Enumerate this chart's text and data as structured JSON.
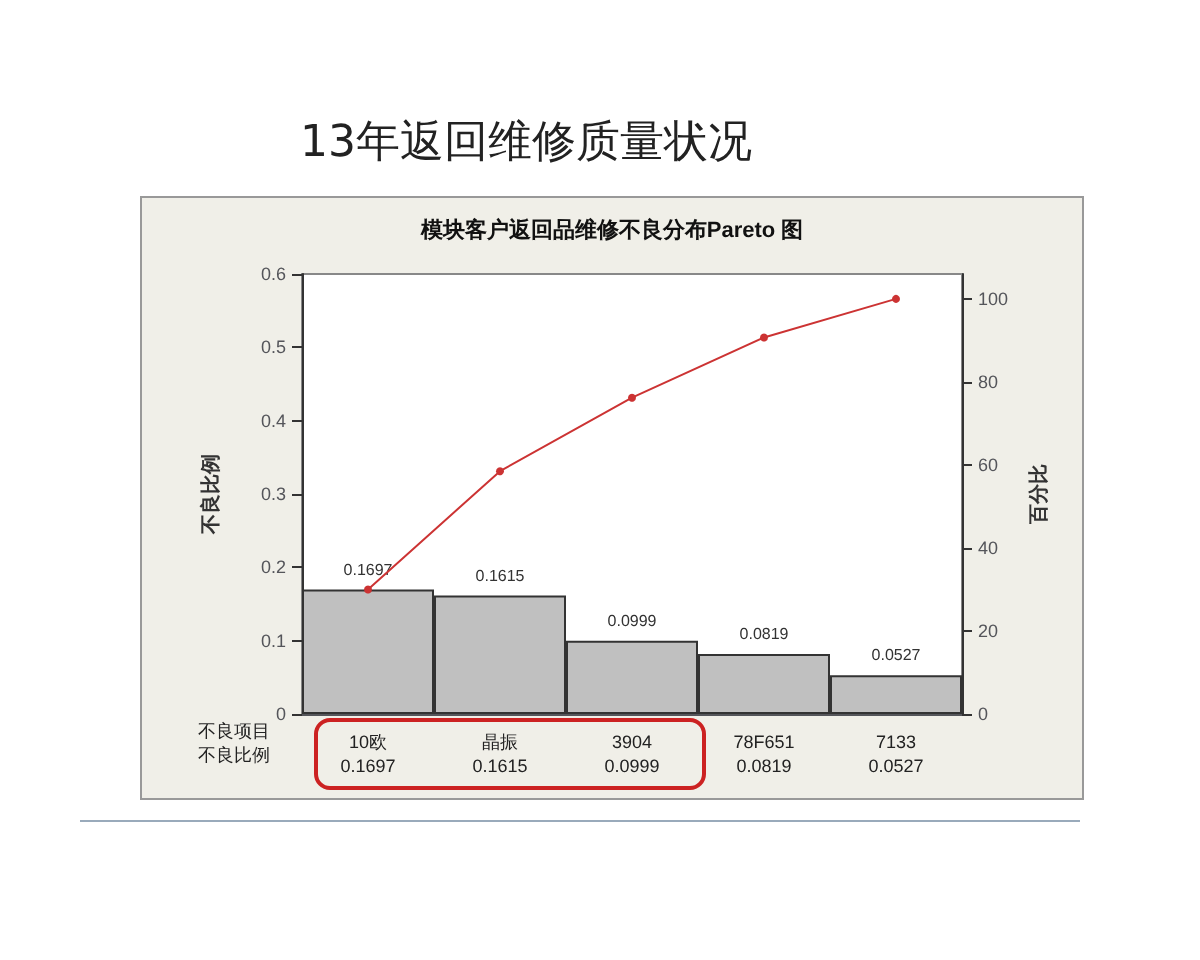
{
  "chart_data": {
    "type": "bar",
    "title": "13年返回维修质量状况",
    "subtitle": "模块客户返回品维修不良分布Pareto 图",
    "ylabel": "不良比例",
    "y2label": "百分比",
    "categories": [
      "10欧",
      "晶振",
      "3904",
      "78F651",
      "7133"
    ],
    "series": [
      {
        "color": "#c0c0c0",
        "values": [
          0.1697,
          0.1615,
          0.0999,
          0.0819,
          0.0527
        ],
        "value_labels": [
          "0.1697",
          "0.1615",
          "0.0999",
          "0.0819",
          "0.0527"
        ]
      },
      {
        "type": "line",
        "axis": "y2",
        "color": "#cc3333",
        "values": [
          30.0,
          58.5,
          76.2,
          90.7,
          100
        ]
      }
    ],
    "ylim": [
      0,
      0.6
    ],
    "yticks": [
      0,
      0.1,
      0.2,
      0.3,
      0.4,
      0.5,
      0.6
    ],
    "y2lim": [
      0,
      106
    ],
    "y2ticks": [
      0,
      20,
      40,
      60,
      80,
      100
    ],
    "annotations": [
      "不良项目",
      "不良比例"
    ],
    "grid": false,
    "marker": "circle",
    "line_style": "solid"
  }
}
